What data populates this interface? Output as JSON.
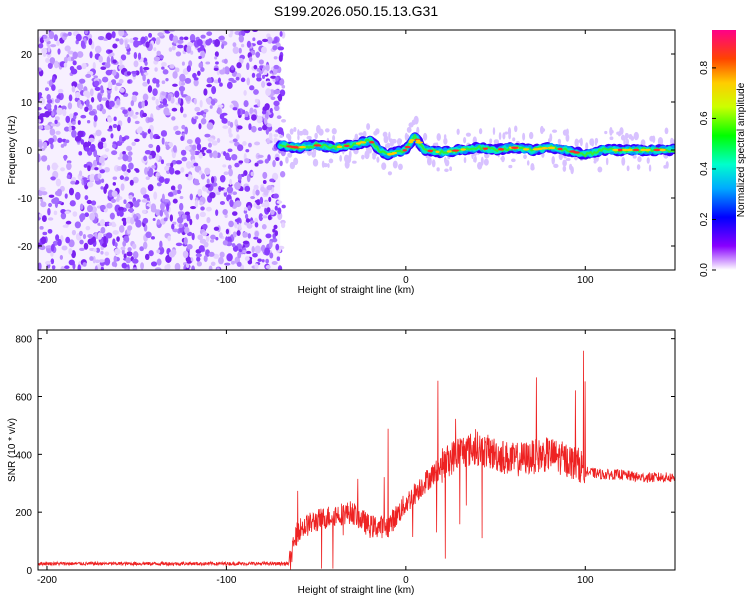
{
  "title": "S199.2026.050.15.13.G31",
  "chart_data": [
    {
      "type": "heatmap",
      "title": "S199.2026.050.15.13.G31",
      "xlabel": "Height of straight line (km)",
      "ylabel": "Frequency (Hz)",
      "xlim": [
        -205,
        150
      ],
      "ylim": [
        -25,
        25
      ],
      "xticks": [
        -200,
        -100,
        0,
        100
      ],
      "yticks": [
        20,
        10,
        0,
        -10,
        -20
      ],
      "noise_region_x": [
        -205,
        -70
      ],
      "signal_region_x": [
        -70,
        150
      ],
      "signal_trace": {
        "x": [
          -70,
          -60,
          -50,
          -40,
          -30,
          -20,
          -15,
          -10,
          0,
          5,
          10,
          20,
          30,
          40,
          50,
          60,
          70,
          80,
          90,
          100,
          110,
          120,
          130,
          140,
          150
        ],
        "y": [
          1,
          0.5,
          1,
          0.5,
          1,
          2,
          0,
          -1,
          0,
          3,
          0,
          -0.5,
          0,
          0.5,
          0,
          0.5,
          0,
          0.5,
          0,
          -1,
          0,
          0,
          0,
          0,
          0
        ]
      },
      "colorbar": {
        "label": "Normalized spectral amplitude",
        "ticks": [
          "0.0",
          "0.2",
          "0.4",
          "0.6",
          "0.8"
        ],
        "range": [
          0,
          0.95
        ]
      }
    },
    {
      "type": "line",
      "xlabel": "Height of straight line (km)",
      "ylabel": "SNR (10 * v/v)",
      "xlim": [
        -205,
        150
      ],
      "ylim": [
        0,
        830
      ],
      "xticks": [
        -200,
        -100,
        0,
        100
      ],
      "yticks": [
        0,
        200,
        400,
        600,
        800
      ],
      "series": [
        {
          "name": "SNR",
          "color": "#ee2222",
          "envelope_x": [
            -205,
            -70,
            -65,
            -60,
            -50,
            -40,
            -30,
            -20,
            -10,
            0,
            10,
            20,
            30,
            40,
            50,
            60,
            70,
            80,
            90,
            98,
            100,
            110,
            120,
            130,
            140,
            150
          ],
          "envelope_y": [
            22,
            22,
            22,
            140,
            170,
            190,
            200,
            150,
            150,
            230,
            300,
            360,
            410,
            420,
            400,
            380,
            390,
            400,
            380,
            360,
            340,
            330,
            330,
            320,
            320,
            320
          ]
        }
      ]
    }
  ]
}
